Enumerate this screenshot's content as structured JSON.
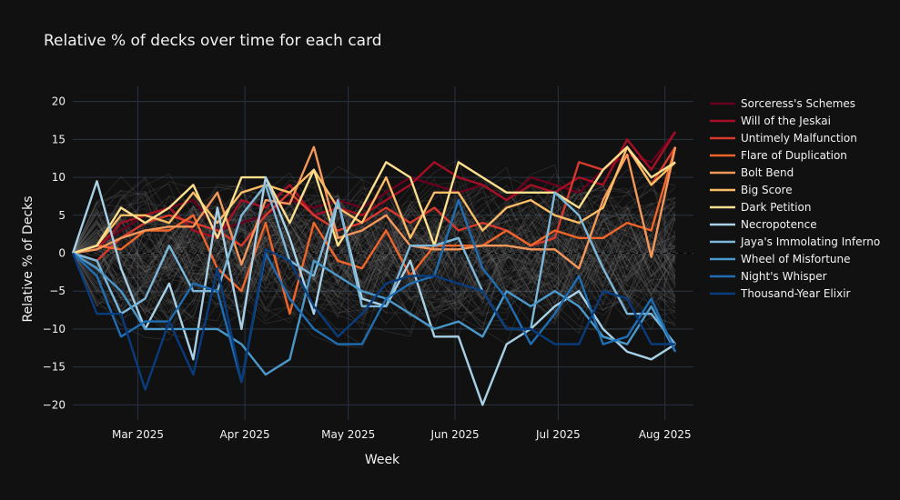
{
  "chart_data": {
    "type": "line",
    "title": "Relative  % of decks over time for each card",
    "xlabel": "Week",
    "ylabel": "Relative % of Decks",
    "ylim": [
      -22,
      22
    ],
    "yticks": [
      -20,
      -15,
      -10,
      -5,
      0,
      5,
      10,
      15,
      20
    ],
    "xrange_weeks": [
      0,
      25.75
    ],
    "xticks": [
      {
        "label": "Mar 2025",
        "week": 2.7
      },
      {
        "label": "Apr 2025",
        "week": 7.14
      },
      {
        "label": "May 2025",
        "week": 11.43
      },
      {
        "label": "Jun 2025",
        "week": 15.86
      },
      {
        "label": "Jul 2025",
        "week": 20.14
      },
      {
        "label": "Aug 2025",
        "week": 24.57
      }
    ],
    "zero_line": true,
    "background_series_note": "many unlabeled grey lines",
    "series": [
      {
        "name": "Sorceress's Schemes",
        "color": "#67001f",
        "values": [
          0,
          1,
          3,
          5,
          6,
          7,
          3,
          4,
          5,
          7,
          6,
          7,
          6,
          8,
          10,
          9,
          8,
          9,
          7,
          10,
          9,
          8,
          11,
          13,
          12,
          16
        ]
      },
      {
        "name": "Will of the Jeskai",
        "color": "#a50f25",
        "values": [
          0,
          0.5,
          4,
          5,
          6,
          3,
          2,
          7,
          6,
          9,
          5,
          6,
          5,
          7,
          9,
          12,
          10,
          9,
          7,
          9,
          8,
          10,
          9,
          15,
          11,
          16
        ]
      },
      {
        "name": "Untimely Malfunction",
        "color": "#d6392d",
        "values": [
          0,
          -1,
          2,
          4,
          5,
          4,
          3,
          1,
          5,
          8,
          5,
          3,
          4,
          6,
          4,
          6,
          3,
          4,
          3,
          1,
          2,
          12,
          11,
          14,
          9,
          14
        ]
      },
      {
        "name": "Flare of Duplication",
        "color": "#f0652a",
        "values": [
          0,
          1,
          0.5,
          3,
          3,
          5,
          -2,
          -5,
          4,
          -8,
          4,
          -1,
          -2,
          3,
          -3,
          1,
          1,
          1,
          3,
          1,
          3,
          2,
          2,
          4,
          3,
          14
        ]
      },
      {
        "name": "Bolt Bend",
        "color": "#f4975a",
        "values": [
          0,
          0.5,
          2,
          3,
          3.5,
          3.5,
          8,
          -1.5,
          7,
          6.5,
          14,
          2,
          3,
          5,
          1,
          0.5,
          0.5,
          1,
          1,
          0.5,
          0.5,
          -2,
          7,
          13,
          -0.5,
          14
        ]
      },
      {
        "name": "Big Score",
        "color": "#fbbc66",
        "values": [
          0,
          1,
          5,
          5,
          4,
          8,
          4,
          8,
          9,
          8,
          11,
          6,
          4,
          10,
          2,
          8,
          8,
          3,
          6,
          7,
          5,
          4,
          6,
          14,
          9,
          12
        ]
      },
      {
        "name": "Dark Petition",
        "color": "#fde08e",
        "values": [
          0,
          1,
          6,
          4,
          6,
          9,
          2,
          10,
          10,
          4,
          11,
          1,
          6,
          12,
          10,
          1,
          12,
          10,
          8,
          8,
          8,
          6,
          11,
          14,
          10,
          12
        ]
      },
      {
        "name": "Necropotence",
        "color": "#a8d1e7",
        "values": [
          0,
          9.5,
          -2,
          -10,
          -4,
          -14,
          6,
          -10,
          10,
          2,
          -8,
          7,
          -6,
          -7,
          -1,
          -11,
          -11,
          -20,
          -12,
          -10,
          -7,
          -5,
          -10,
          -13,
          -14,
          -12
        ]
      },
      {
        "name": "Jaya's Immolating Inferno",
        "color": "#7db8da",
        "values": [
          0,
          -1,
          -8,
          -6,
          1,
          -5,
          -5,
          5,
          9,
          -1,
          -3,
          7,
          -7,
          -7,
          1,
          1,
          2,
          -5,
          -10,
          -10,
          8,
          5,
          -2,
          -8,
          -8,
          -12
        ]
      },
      {
        "name": "Wheel of Misfortune",
        "color": "#4a98c9",
        "values": [
          0,
          -2,
          -5,
          -10,
          -10,
          -10,
          -10,
          -12,
          -16,
          -14,
          -1,
          -3,
          -5,
          -6,
          -8,
          -10,
          -9,
          -11,
          -5,
          -7,
          -5,
          -7,
          -11,
          -12,
          -7,
          -13
        ]
      },
      {
        "name": "Night's Whisper",
        "color": "#1f6eb3",
        "values": [
          0,
          -3,
          -11,
          -9,
          -9,
          -4,
          -5,
          -17,
          0,
          -6,
          -10,
          -12,
          -12,
          -6,
          -4,
          -3,
          7,
          -2,
          -6,
          -12,
          -8,
          -3,
          -12,
          -11,
          -6,
          -13
        ]
      },
      {
        "name": "Thousand-Year Elixir",
        "color": "#083c7d",
        "values": [
          0,
          -8,
          -8,
          -18,
          -9,
          -16,
          -2,
          -17,
          0.5,
          -1,
          -7,
          -11,
          -8,
          -4,
          -3,
          -3,
          -4,
          -5,
          -10,
          -10,
          -12,
          -12,
          -5,
          -6,
          -12,
          -12
        ]
      }
    ]
  }
}
